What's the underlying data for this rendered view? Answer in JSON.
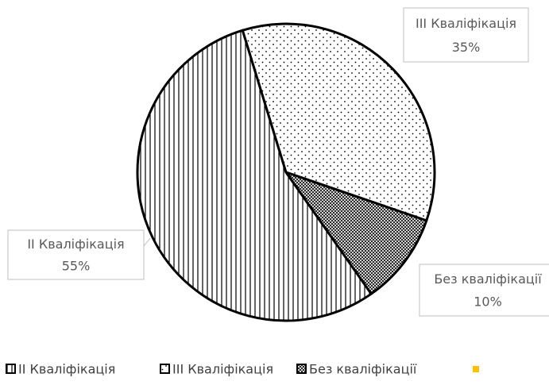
{
  "chart_data": {
    "type": "pie",
    "categories": [
      "II Кваліфікація",
      "III Кваліфікація",
      "Без кваліфікації",
      null
    ],
    "values": [
      55,
      35,
      10,
      0
    ],
    "value_labels": [
      "55%",
      "35%",
      "10%",
      null
    ],
    "colors": [
      "#000000",
      "#000000",
      "#000000",
      "#ffc000"
    ],
    "legend": "bottom"
  }
}
